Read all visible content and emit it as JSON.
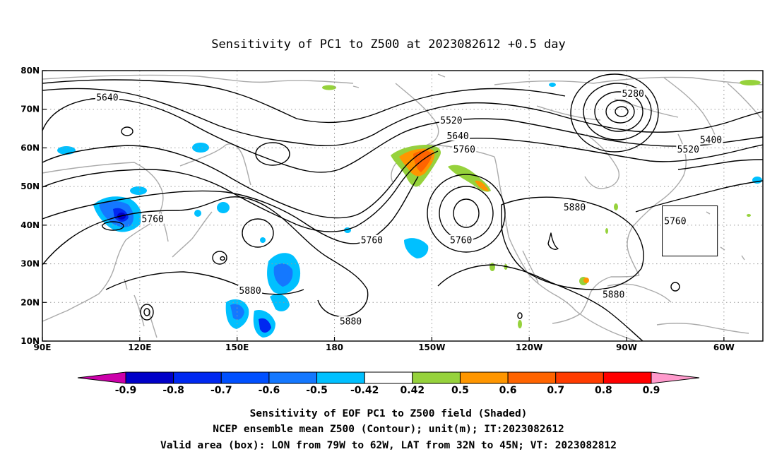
{
  "figure": {
    "title": "Sensitivity of PC1 to Z500 at 2023082612 +0.5 day",
    "caption": [
      "Sensitivity of EOF PC1 to Z500 field (Shaded)",
      "NCEP ensemble mean Z500 (Contour); unit(m); IT:2023082612",
      "Valid area (box): LON from 79W to 62W, LAT from 32N to 45N; VT: 2023082812"
    ]
  },
  "map": {
    "lon_range": [
      90,
      312
    ],
    "lat_range": [
      10,
      80
    ],
    "x_ticks": [
      {
        "lon": 90,
        "label": "90E"
      },
      {
        "lon": 120,
        "label": "120E"
      },
      {
        "lon": 150,
        "label": "150E"
      },
      {
        "lon": 180,
        "label": "180"
      },
      {
        "lon": 210,
        "label": "150W"
      },
      {
        "lon": 240,
        "label": "120W"
      },
      {
        "lon": 270,
        "label": "90W"
      },
      {
        "lon": 300,
        "label": "60W"
      }
    ],
    "y_ticks": [
      {
        "lat": 10,
        "label": "10N"
      },
      {
        "lat": 20,
        "label": "20N"
      },
      {
        "lat": 30,
        "label": "30N"
      },
      {
        "lat": 40,
        "label": "40N"
      },
      {
        "lat": 50,
        "label": "50N"
      },
      {
        "lat": 60,
        "label": "60N"
      },
      {
        "lat": 70,
        "label": "70N"
      },
      {
        "lat": 80,
        "label": "80N"
      }
    ],
    "grid": true,
    "valid_box": {
      "lon": [
        281,
        298
      ],
      "lat": [
        32,
        45
      ]
    },
    "contour_labels": [
      {
        "text": "5640",
        "lon": 110,
        "lat": 73
      },
      {
        "text": "5520",
        "lon": 216,
        "lat": 67
      },
      {
        "text": "5640",
        "lon": 218,
        "lat": 63
      },
      {
        "text": "5760",
        "lon": 220,
        "lat": 59.5
      },
      {
        "text": "5280",
        "lon": 272,
        "lat": 74
      },
      {
        "text": "5400",
        "lon": 296,
        "lat": 62
      },
      {
        "text": "5520",
        "lon": 289,
        "lat": 59.5
      },
      {
        "text": "5760",
        "lon": 124,
        "lat": 41.5
      },
      {
        "text": "5760",
        "lon": 191.5,
        "lat": 36
      },
      {
        "text": "5760",
        "lon": 219,
        "lat": 36
      },
      {
        "text": "5880",
        "lon": 254,
        "lat": 44.5
      },
      {
        "text": "5760",
        "lon": 285,
        "lat": 41
      },
      {
        "text": "5880",
        "lon": 154,
        "lat": 23
      },
      {
        "text": "5880",
        "lon": 185,
        "lat": 15
      },
      {
        "text": "5880",
        "lon": 266,
        "lat": 22
      }
    ]
  },
  "colorbar": {
    "labels": [
      "-0.9",
      "-0.8",
      "-0.7",
      "-0.6",
      "-0.5",
      "-0.42",
      "0.42",
      "0.5",
      "0.6",
      "0.7",
      "0.8",
      "0.9"
    ],
    "colors": [
      "#cc00aa",
      "#0000c8",
      "#0028f0",
      "#0050ff",
      "#1478ff",
      "#00c0ff",
      "#ffffff",
      "#96d23c",
      "#ff9600",
      "#ff6400",
      "#ff3c00",
      "#ff0000",
      "#ff9acc"
    ]
  }
}
